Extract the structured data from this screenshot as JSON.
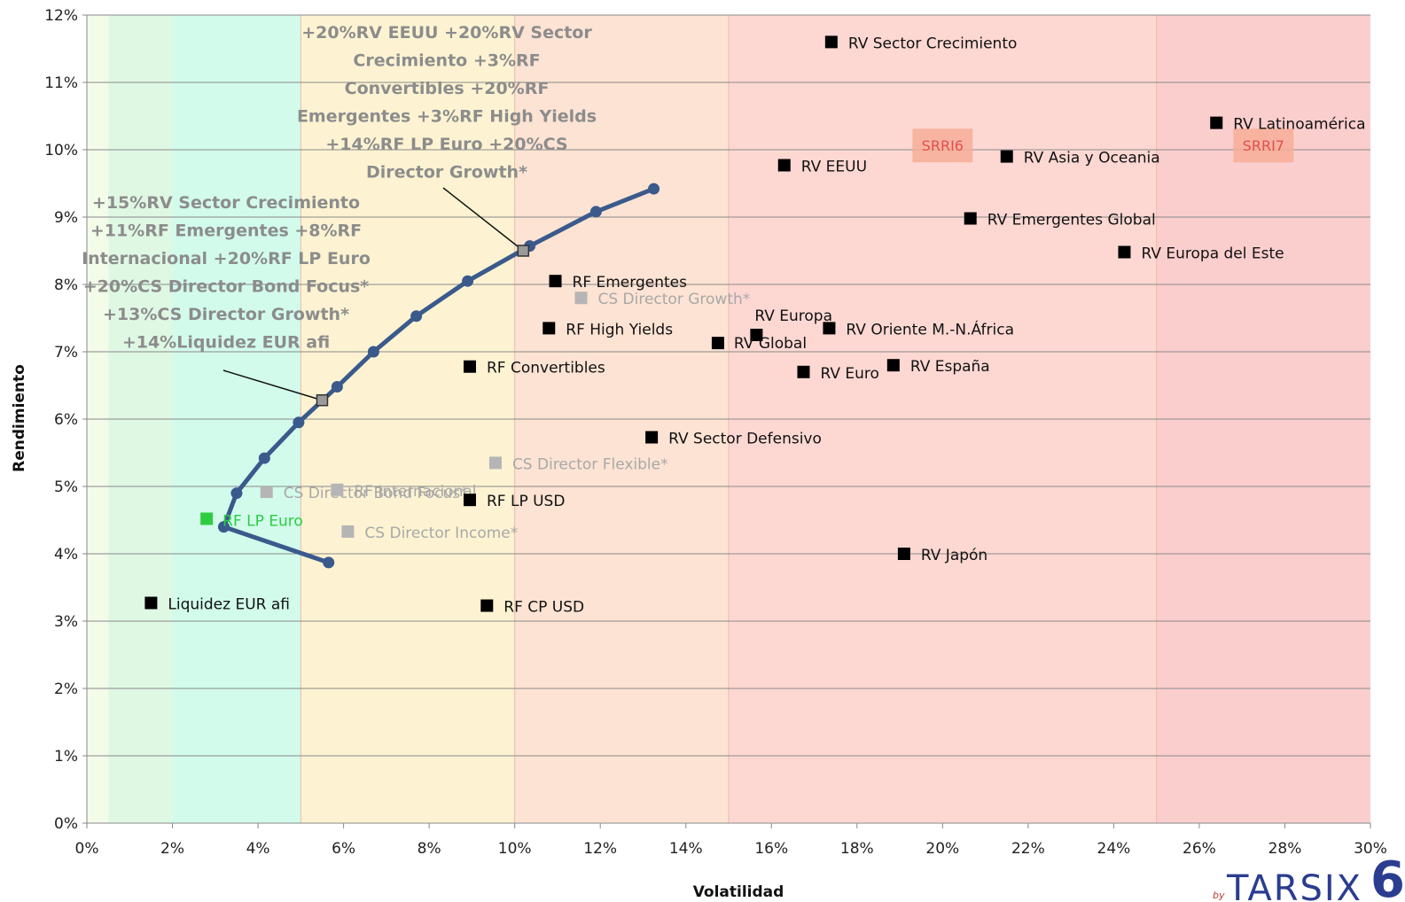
{
  "chart_data": {
    "type": "scatter",
    "xlabel": "Volatilidad",
    "ylabel": "Rendimiento",
    "xlim": [
      0,
      30
    ],
    "ylim": [
      0,
      12
    ],
    "x_ticks": [
      "0%",
      "2%",
      "4%",
      "6%",
      "8%",
      "10%",
      "12%",
      "14%",
      "16%",
      "18%",
      "20%",
      "22%",
      "24%",
      "26%",
      "28%",
      "30%"
    ],
    "y_ticks": [
      "0%",
      "1%",
      "2%",
      "3%",
      "4%",
      "5%",
      "6%",
      "7%",
      "8%",
      "9%",
      "10%",
      "11%",
      "12%"
    ],
    "grid": "horizontal",
    "bands": [
      {
        "from": 0,
        "to": 0.5,
        "color": "#f3fbe9"
      },
      {
        "from": 0.5,
        "to": 2,
        "color": "#dff8e4"
      },
      {
        "from": 2,
        "to": 5,
        "color": "#d2fbec"
      },
      {
        "from": 5,
        "to": 10,
        "color": "#fdf3d2"
      },
      {
        "from": 10,
        "to": 15,
        "color": "#fde3d3"
      },
      {
        "from": 15,
        "to": 25,
        "color": "#fdd8d3"
      },
      {
        "from": 25,
        "to": 30,
        "color": "#fbcece"
      }
    ],
    "srri_labels": [
      {
        "text": "SRRI6",
        "x": 20,
        "y": 10.05
      },
      {
        "text": "SRRI7",
        "x": 27.5,
        "y": 10.05
      }
    ],
    "frontier": {
      "color": "#3a5a8c",
      "points": [
        {
          "x": 5.65,
          "y": 3.87
        },
        {
          "x": 3.2,
          "y": 4.4
        },
        {
          "x": 3.5,
          "y": 4.9
        },
        {
          "x": 4.15,
          "y": 5.42
        },
        {
          "x": 4.95,
          "y": 5.95
        },
        {
          "x": 5.85,
          "y": 6.48
        },
        {
          "x": 6.7,
          "y": 7.0
        },
        {
          "x": 7.7,
          "y": 7.53
        },
        {
          "x": 8.9,
          "y": 8.05
        },
        {
          "x": 10.35,
          "y": 8.57
        },
        {
          "x": 11.9,
          "y": 9.08
        },
        {
          "x": 13.25,
          "y": 9.42
        }
      ]
    },
    "series": [
      {
        "name": "RV Sector Crecimiento",
        "x": 17.4,
        "y": 11.6,
        "color": "#000000"
      },
      {
        "name": "RV Latinoamérica",
        "x": 26.4,
        "y": 10.4,
        "color": "#000000"
      },
      {
        "name": "RV EEUU",
        "x": 16.3,
        "y": 9.77,
        "color": "#000000"
      },
      {
        "name": "RV Asia y Oceania",
        "x": 21.5,
        "y": 9.9,
        "color": "#000000"
      },
      {
        "name": "RV Emergentes Global",
        "x": 20.65,
        "y": 8.98,
        "color": "#000000"
      },
      {
        "name": "RV Europa del Este",
        "x": 24.25,
        "y": 8.48,
        "color": "#000000"
      },
      {
        "name": "RF Emergentes",
        "x": 10.95,
        "y": 8.05,
        "color": "#000000"
      },
      {
        "name": "CS Director Growth*",
        "x": 11.55,
        "y": 7.8,
        "color": "#b5b5b5"
      },
      {
        "name": "RF High Yields",
        "x": 10.8,
        "y": 7.35,
        "color": "#000000"
      },
      {
        "name": "RV Europa",
        "x": 15.65,
        "y": 7.25,
        "color": "#000000"
      },
      {
        "name": "RV Global",
        "x": 14.75,
        "y": 7.13,
        "color": "#000000"
      },
      {
        "name": "RV Oriente M.-N.África",
        "x": 17.35,
        "y": 7.35,
        "color": "#000000"
      },
      {
        "name": "RF Convertibles",
        "x": 8.95,
        "y": 6.78,
        "color": "#000000"
      },
      {
        "name": "RV Euro",
        "x": 16.75,
        "y": 6.7,
        "color": "#000000"
      },
      {
        "name": "RV España",
        "x": 18.85,
        "y": 6.8,
        "color": "#000000"
      },
      {
        "name": "RV Sector Defensivo",
        "x": 13.2,
        "y": 5.73,
        "color": "#000000"
      },
      {
        "name": "CS Director Flexible*",
        "x": 9.55,
        "y": 5.35,
        "color": "#b5b5b5"
      },
      {
        "name": "CS Director Bond Focus*",
        "x": 4.2,
        "y": 4.92,
        "color": "#b5b5b5"
      },
      {
        "name": "RF Internacional",
        "x": 5.85,
        "y": 4.95,
        "color": "#b5b5b5"
      },
      {
        "name": "RF LP USD",
        "x": 8.95,
        "y": 4.8,
        "color": "#000000"
      },
      {
        "name": "RF LP Euro",
        "x": 2.8,
        "y": 4.52,
        "color": "#2ecc40"
      },
      {
        "name": "CS Director Income*",
        "x": 6.1,
        "y": 4.33,
        "color": "#b5b5b5"
      },
      {
        "name": "RV Japón",
        "x": 19.1,
        "y": 4.0,
        "color": "#000000"
      },
      {
        "name": "Liquidez EUR afi",
        "x": 1.5,
        "y": 3.27,
        "color": "#000000"
      },
      {
        "name": "RF CP USD",
        "x": 9.35,
        "y": 3.23,
        "color": "#000000"
      }
    ],
    "annotations": [
      {
        "lines": [
          "+20%RV EEUU +20%RV Sector",
          "Crecimiento +3%RF",
          "Convertibles +20%RF",
          "Emergentes +3%RF High Yields",
          "+14%RF LP Euro +20%CS",
          "Director Growth*"
        ],
        "point": {
          "x": 10.2,
          "y": 8.5
        }
      },
      {
        "lines": [
          "+15%RV Sector Crecimiento",
          "+11%RF Emergentes +8%RF",
          "Internacional +20%RF LP Euro",
          "+20%CS Director Bond Focus*",
          "+13%CS Director Growth*",
          "+14%Liquidez EUR afi"
        ],
        "point": {
          "x": 5.5,
          "y": 6.28
        }
      }
    ]
  },
  "logo": {
    "by": "by",
    "text": "TARSIX",
    "mark": "6"
  }
}
